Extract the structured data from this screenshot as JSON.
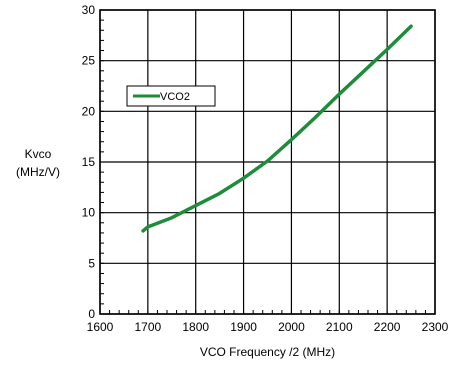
{
  "chart_data": {
    "type": "line",
    "title": "",
    "xlabel": "VCO Frequency /2 (MHz)",
    "ylabel_lines": [
      "Kvco",
      "(MHz/V)"
    ],
    "xlim": [
      1600,
      2300
    ],
    "ylim": [
      0,
      30
    ],
    "x_ticks": [
      1600,
      1700,
      1800,
      1900,
      2000,
      2100,
      2200,
      2300
    ],
    "y_ticks": [
      0,
      5,
      10,
      15,
      20,
      25,
      30
    ],
    "grid": true,
    "legend_position": "upper-left",
    "series": [
      {
        "name": "VCO2",
        "color": "#1e8c3a",
        "x": [
          1690,
          1700,
          1750,
          1800,
          1850,
          1900,
          1950,
          2000,
          2050,
          2100,
          2150,
          2200,
          2250
        ],
        "y": [
          8.2,
          8.6,
          9.5,
          10.7,
          11.9,
          13.4,
          15.1,
          17.2,
          19.4,
          21.7,
          23.9,
          26.1,
          28.4
        ]
      }
    ]
  }
}
